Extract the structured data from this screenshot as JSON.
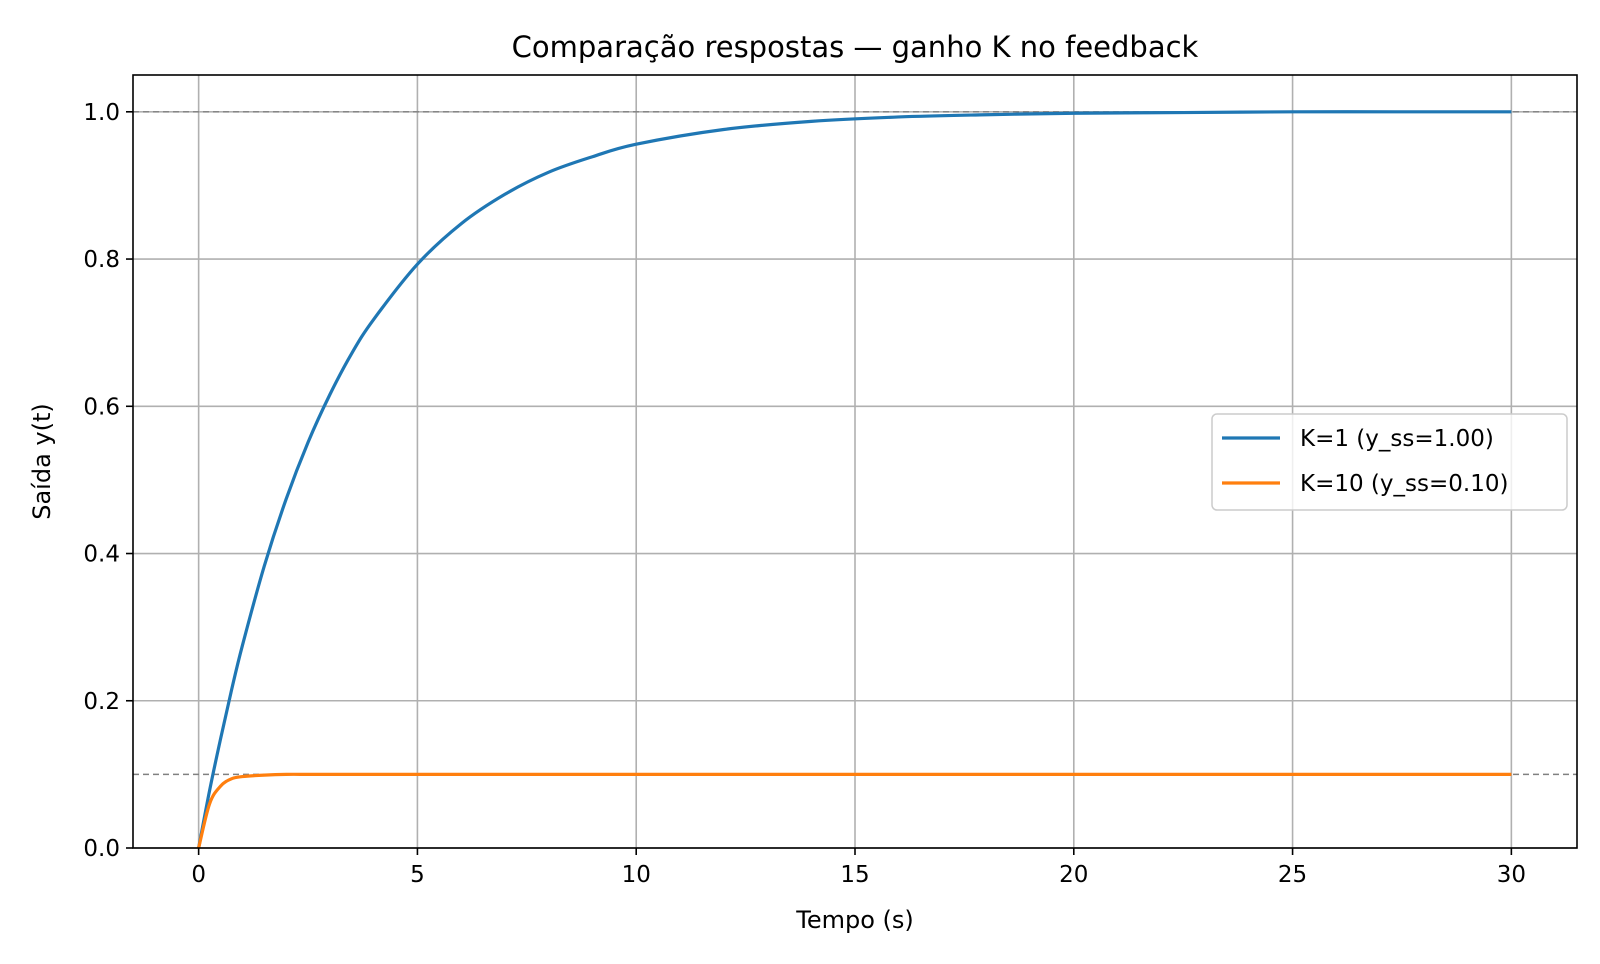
{
  "chart_data": {
    "type": "line",
    "title": "Comparação respostas — ganho K no feedback",
    "xlabel": "Tempo (s)",
    "ylabel": "Saída y(t)",
    "xlim": [
      -1.5,
      31.5
    ],
    "ylim": [
      0.0,
      1.05
    ],
    "xticks": [
      0,
      5,
      10,
      15,
      20,
      25,
      30
    ],
    "xtick_labels": [
      "0",
      "5",
      "10",
      "15",
      "20",
      "25",
      "30"
    ],
    "yticks": [
      0.0,
      0.2,
      0.4,
      0.6,
      0.8,
      1.0
    ],
    "ytick_labels": [
      "0.0",
      "0.2",
      "0.4",
      "0.6",
      "0.8",
      "1.0"
    ],
    "grid": true,
    "legend_position": "center-right",
    "reference_lines": [
      {
        "y": 1.0,
        "style": "dashed",
        "color": "#808080"
      },
      {
        "y": 0.1,
        "style": "dashed",
        "color": "#808080"
      }
    ],
    "x": [
      0,
      0.25,
      0.5,
      0.75,
      1.0,
      1.5,
      2.0,
      2.5,
      3.0,
      3.5,
      4.0,
      5.0,
      6.0,
      7.0,
      8.0,
      9.0,
      10.0,
      12.0,
      14.0,
      16.0,
      18.0,
      20.0,
      22.5,
      25.0,
      27.5,
      30.0
    ],
    "series": [
      {
        "name": "K=1 (y_ss=1.00)",
        "color": "#1f77b4",
        "values": [
          0.0,
          0.078,
          0.148,
          0.214,
          0.275,
          0.383,
          0.474,
          0.551,
          0.616,
          0.672,
          0.718,
          0.793,
          0.848,
          0.888,
          0.918,
          0.939,
          0.956,
          0.976,
          0.987,
          0.993,
          0.996,
          0.998,
          0.999,
          1.0,
          1.0,
          1.0
        ]
      },
      {
        "name": "K=10 (y_ss=0.10)",
        "color": "#ff7f0e",
        "values": [
          0.0,
          0.06,
          0.084,
          0.094,
          0.097,
          0.099,
          0.1,
          0.1,
          0.1,
          0.1,
          0.1,
          0.1,
          0.1,
          0.1,
          0.1,
          0.1,
          0.1,
          0.1,
          0.1,
          0.1,
          0.1,
          0.1,
          0.1,
          0.1,
          0.1,
          0.1
        ]
      }
    ]
  }
}
